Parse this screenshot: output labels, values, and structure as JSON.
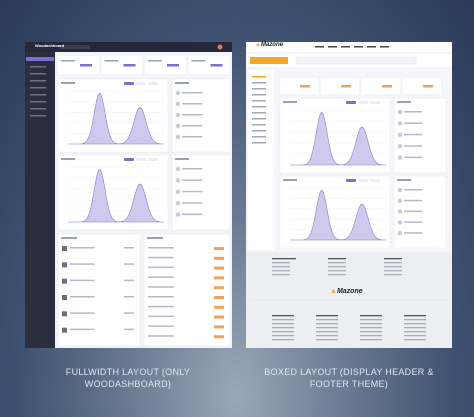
{
  "captions": {
    "left": [
      "FULLWIDTH LAYOUT (ONLY",
      "WOODASHBOARD)"
    ],
    "right": [
      "BOXED LAYOUT (DISPLAY HEADER &",
      "FOOTER THEME)"
    ]
  },
  "left_screen": {
    "brand": "Woodashboard"
  },
  "right_screen": {
    "brand": "Mazone",
    "footer_brand": "Mazone"
  }
}
